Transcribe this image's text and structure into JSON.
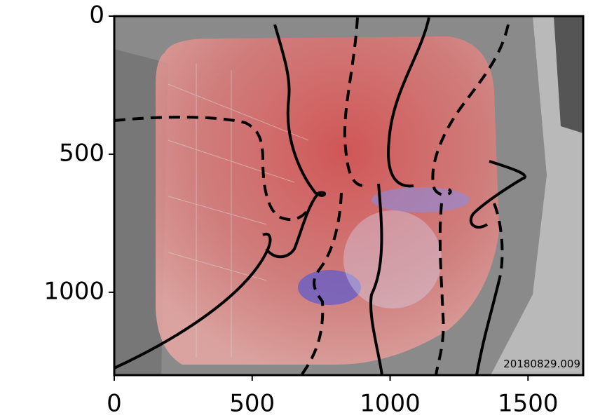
{
  "chart_data": {
    "type": "image",
    "annotation": "20180829.009",
    "xlim": [
      0,
      1700
    ],
    "ylim": [
      1300,
      0
    ],
    "xticks": [
      0,
      500,
      1000,
      1500
    ],
    "yticks": [
      0,
      500,
      1000
    ]
  }
}
